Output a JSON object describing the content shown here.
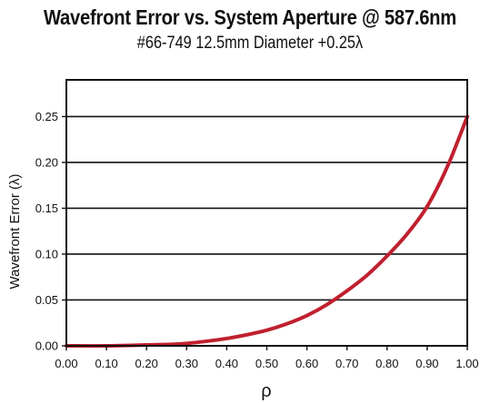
{
  "chart_data": {
    "type": "line",
    "title": "Wavefront Error vs. System Aperture @ 587.6nm",
    "subtitle": "#66-749 12.5mm Diameter +0.25λ",
    "xlabel": "ρ",
    "ylabel": "Wavefront Error (λ)",
    "xlim": [
      0,
      1
    ],
    "ylim": [
      0,
      0.29
    ],
    "grid": "horizontal",
    "x_ticks": [
      "0.00",
      "0.10",
      "0.20",
      "0.30",
      "0.40",
      "0.50",
      "0.60",
      "0.70",
      "0.80",
      "0.90",
      "1.00"
    ],
    "y_ticks": [
      "0.00",
      "0.05",
      "0.10",
      "0.15",
      "0.20",
      "0.25"
    ],
    "series": [
      {
        "color": "#c0202e",
        "x": [
          0.0,
          0.1,
          0.2,
          0.28,
          0.35,
          0.4,
          0.45,
          0.5,
          0.55,
          0.6,
          0.65,
          0.7,
          0.75,
          0.8,
          0.85,
          0.9,
          0.95,
          1.0
        ],
        "y": [
          0.0,
          0.0,
          0.001,
          0.002,
          0.005,
          0.008,
          0.012,
          0.017,
          0.024,
          0.033,
          0.045,
          0.06,
          0.077,
          0.098,
          0.122,
          0.152,
          0.195,
          0.25
        ]
      }
    ]
  }
}
